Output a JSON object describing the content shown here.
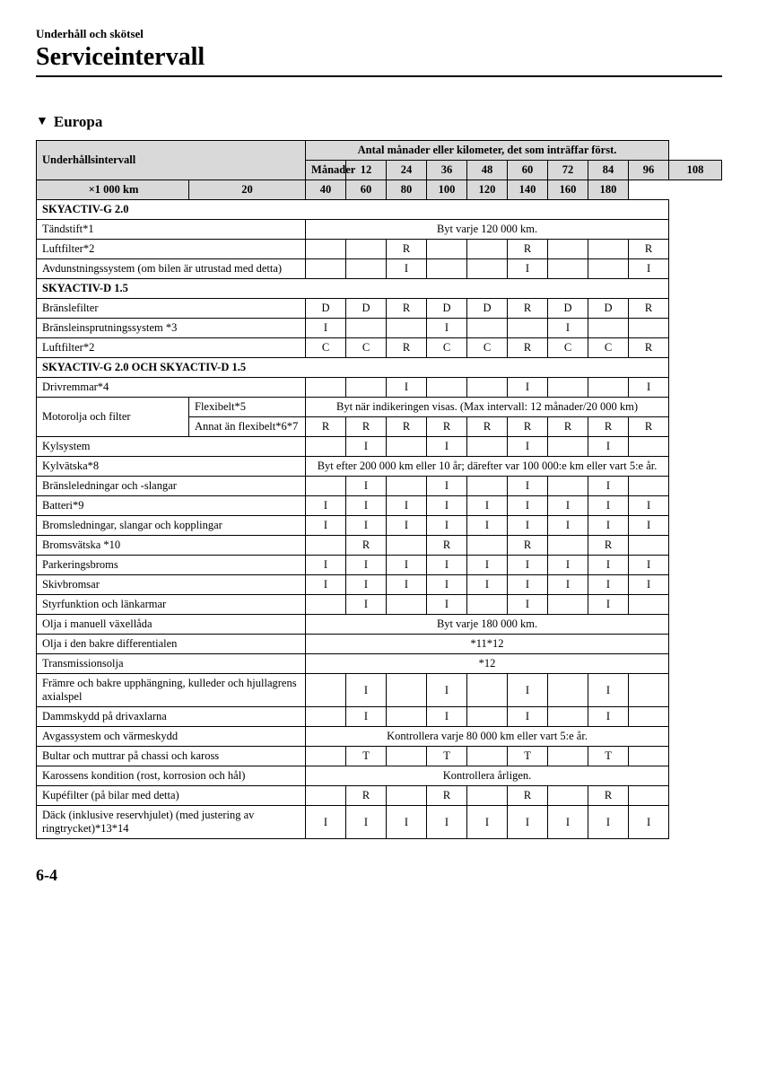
{
  "header": {
    "small": "Underhåll och skötsel",
    "large": "Serviceintervall"
  },
  "section": "Europa",
  "table": {
    "interval_label": "Underhållsintervall",
    "top_header": "Antal månader eller kilometer, det som inträffar först.",
    "months_label": "Månader",
    "km_label": "×1 000 km",
    "months": [
      "12",
      "24",
      "36",
      "48",
      "60",
      "72",
      "84",
      "96",
      "108"
    ],
    "km": [
      "20",
      "40",
      "60",
      "80",
      "100",
      "120",
      "140",
      "160",
      "180"
    ],
    "group1": "SKYACTIV-G 2.0",
    "r1": {
      "label": "Tändstift*1",
      "note": "Byt varje 120 000 km."
    },
    "r2": {
      "label": "Luftfilter*2",
      "c": [
        "",
        "",
        "R",
        "",
        "",
        "R",
        "",
        "",
        "R"
      ]
    },
    "r3": {
      "label": "Avdunstningssystem (om bilen är utrustad med detta)",
      "c": [
        "",
        "",
        "I",
        "",
        "",
        "I",
        "",
        "",
        "I"
      ]
    },
    "group2": "SKYACTIV-D 1.5",
    "r4": {
      "label": "Bränslefilter",
      "c": [
        "D",
        "D",
        "R",
        "D",
        "D",
        "R",
        "D",
        "D",
        "R"
      ]
    },
    "r5": {
      "label": "Bränsleinsprutningssystem *3",
      "c": [
        "I",
        "",
        "",
        "I",
        "",
        "",
        "I",
        "",
        ""
      ]
    },
    "r6": {
      "label": "Luftfilter*2",
      "c": [
        "C",
        "C",
        "R",
        "C",
        "C",
        "R",
        "C",
        "C",
        "R"
      ]
    },
    "group3": "SKYACTIV-G 2.0 OCH SKYACTIV-D 1.5",
    "r7": {
      "label": "Drivremmar*4",
      "c": [
        "",
        "",
        "I",
        "",
        "",
        "I",
        "",
        "",
        "I"
      ]
    },
    "r8": {
      "label": "Motorolja och filter",
      "sub1": "Flexibelt*5",
      "note1": "Byt när indikeringen visas. (Max intervall: 12 månader/20 000 km)",
      "sub2": "Annat än flexibelt*6*7",
      "c2": [
        "R",
        "R",
        "R",
        "R",
        "R",
        "R",
        "R",
        "R",
        "R"
      ]
    },
    "r9": {
      "label": "Kylsystem",
      "c": [
        "",
        "I",
        "",
        "I",
        "",
        "I",
        "",
        "I",
        ""
      ]
    },
    "r10": {
      "label": "Kylvätska*8",
      "note": "Byt efter 200 000 km eller 10 år; därefter var 100 000:e km eller vart 5:e år."
    },
    "r11": {
      "label": "Bränsleledningar och -slangar",
      "c": [
        "",
        "I",
        "",
        "I",
        "",
        "I",
        "",
        "I",
        ""
      ]
    },
    "r12": {
      "label": "Batteri*9",
      "c": [
        "I",
        "I",
        "I",
        "I",
        "I",
        "I",
        "I",
        "I",
        "I"
      ]
    },
    "r13": {
      "label": "Bromsledningar, slangar och kopplingar",
      "c": [
        "I",
        "I",
        "I",
        "I",
        "I",
        "I",
        "I",
        "I",
        "I"
      ]
    },
    "r14": {
      "label": "Bromsvätska *10",
      "c": [
        "",
        "R",
        "",
        "R",
        "",
        "R",
        "",
        "R",
        ""
      ]
    },
    "r15": {
      "label": "Parkeringsbroms",
      "c": [
        "I",
        "I",
        "I",
        "I",
        "I",
        "I",
        "I",
        "I",
        "I"
      ]
    },
    "r16": {
      "label": "Skivbromsar",
      "c": [
        "I",
        "I",
        "I",
        "I",
        "I",
        "I",
        "I",
        "I",
        "I"
      ]
    },
    "r17": {
      "label": "Styrfunktion och länkarmar",
      "c": [
        "",
        "I",
        "",
        "I",
        "",
        "I",
        "",
        "I",
        ""
      ]
    },
    "r18": {
      "label": "Olja i manuell växellåda",
      "note": "Byt varje 180 000 km."
    },
    "r19": {
      "label": "Olja i den bakre differentialen",
      "note": "*11*12"
    },
    "r20": {
      "label": "Transmissionsolja",
      "note": "*12"
    },
    "r21": {
      "label": "Främre och bakre upphängning, kulleder och hjullagrens axialspel",
      "c": [
        "",
        "I",
        "",
        "I",
        "",
        "I",
        "",
        "I",
        ""
      ]
    },
    "r22": {
      "label": "Dammskydd på drivaxlarna",
      "c": [
        "",
        "I",
        "",
        "I",
        "",
        "I",
        "",
        "I",
        ""
      ]
    },
    "r23": {
      "label": "Avgassystem och värmeskydd",
      "note": "Kontrollera varje 80 000 km eller vart 5:e år."
    },
    "r24": {
      "label": "Bultar och muttrar på chassi och kaross",
      "c": [
        "",
        "T",
        "",
        "T",
        "",
        "T",
        "",
        "T",
        ""
      ]
    },
    "r25": {
      "label": "Karossens kondition (rost, korrosion och hål)",
      "note": "Kontrollera årligen."
    },
    "r26": {
      "label": "Kupéfilter (på bilar med detta)",
      "c": [
        "",
        "R",
        "",
        "R",
        "",
        "R",
        "",
        "R",
        ""
      ]
    },
    "r27": {
      "label": "Däck (inklusive reservhjulet) (med justering av ringtrycket)*13*14",
      "c": [
        "I",
        "I",
        "I",
        "I",
        "I",
        "I",
        "I",
        "I",
        "I"
      ]
    }
  },
  "footer": "6-4"
}
